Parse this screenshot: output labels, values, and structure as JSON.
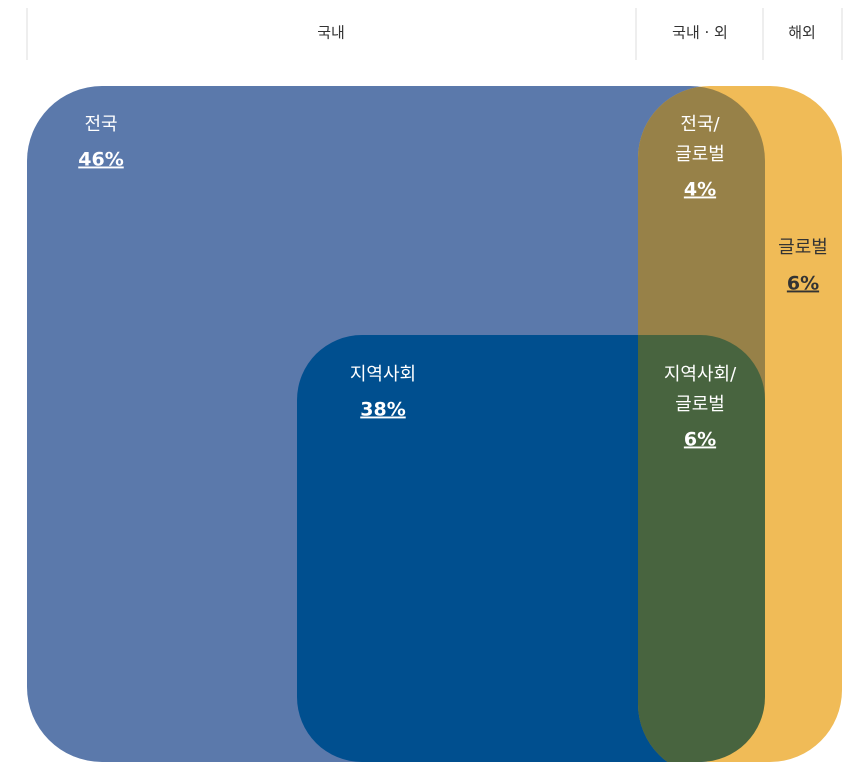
{
  "header": {
    "domestic": "국내",
    "both": "국내 · 외",
    "overseas": "해외"
  },
  "regions": [
    {
      "label": [
        "전국"
      ],
      "value": "46%"
    },
    {
      "label": [
        "전국/",
        "글로벌"
      ],
      "value": "4%"
    },
    {
      "label": [
        "글로벌"
      ],
      "value": "6%"
    },
    {
      "label": [
        "지역사회"
      ],
      "value": "38%"
    },
    {
      "label": [
        "지역사회/",
        "글로벌"
      ],
      "value": "6%"
    }
  ]
}
